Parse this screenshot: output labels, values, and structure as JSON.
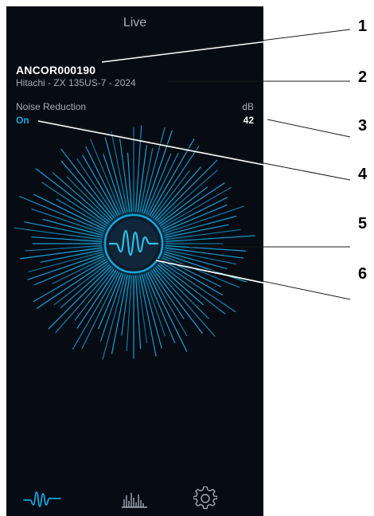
{
  "colors": {
    "background": "#060b14",
    "accent": "#16a6dc",
    "text_primary": "#ffffff",
    "text_secondary": "#a4adb8"
  },
  "header": {
    "title": "Live"
  },
  "device": {
    "id": "ANCOR000190",
    "model": "Hitachi - ZX 135US-7 - 2024"
  },
  "noise_reduction": {
    "label": "Noise Reduction",
    "status": "On"
  },
  "level": {
    "unit": "dB",
    "value": "42"
  },
  "visualizer": {
    "center_icon": "waveform-icon"
  },
  "bottom_nav": {
    "items": [
      {
        "icon": "waveform-icon",
        "active": true
      },
      {
        "icon": "bar-chart-icon",
        "active": false
      },
      {
        "icon": "gear-icon",
        "active": false
      }
    ]
  },
  "callouts": [
    "1",
    "2",
    "3",
    "4",
    "5",
    "6"
  ]
}
